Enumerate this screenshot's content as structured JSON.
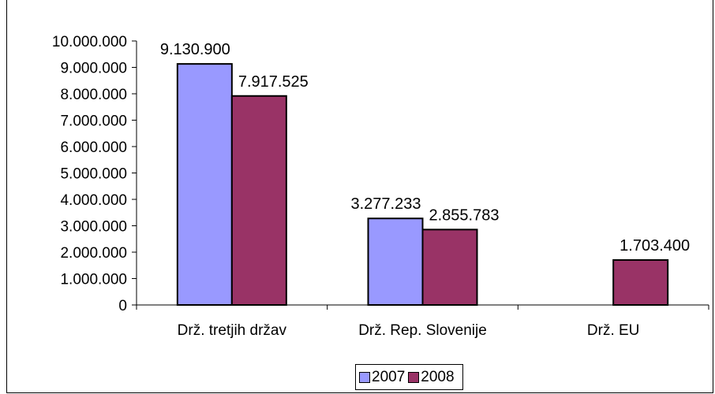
{
  "chart_data": {
    "type": "bar",
    "categories": [
      "Drž. tretjih držav",
      "Drž. Rep. Slovenije",
      "Drž. EU"
    ],
    "series": [
      {
        "name": "2007",
        "values": [
          9130900,
          3277233,
          null
        ],
        "labels": [
          "9.130.900",
          "3.277.233",
          ""
        ],
        "color": "#9999ff"
      },
      {
        "name": "2008",
        "values": [
          7917525,
          2855783,
          1703400
        ],
        "labels": [
          "7.917.525",
          "2.855.783",
          "1.703.400"
        ],
        "color": "#993366"
      }
    ],
    "ylim": [
      0,
      10000000
    ],
    "yticks": [
      0,
      1000000,
      2000000,
      3000000,
      4000000,
      5000000,
      6000000,
      7000000,
      8000000,
      9000000,
      10000000
    ],
    "ytick_labels": [
      "0",
      "1.000.000",
      "2.000.000",
      "3.000.000",
      "4.000.000",
      "5.000.000",
      "6.000.000",
      "7.000.000",
      "8.000.000",
      "9.000.000",
      "10.000.000"
    ],
    "grid": false,
    "legend_position": "bottom"
  }
}
